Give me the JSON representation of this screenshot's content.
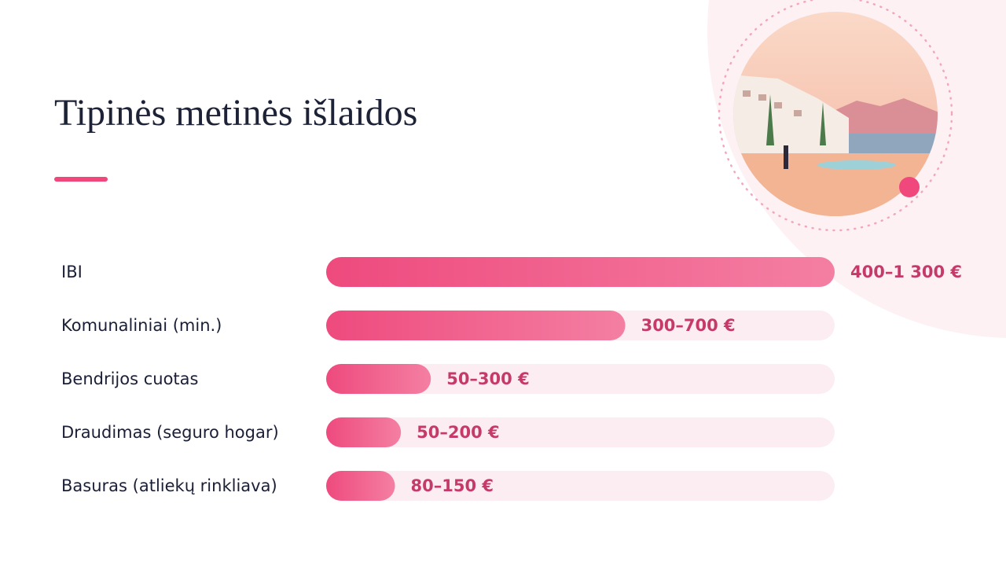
{
  "chart_data": {
    "type": "bar",
    "orientation": "horizontal",
    "title": "Tipinės metinės išlaidos",
    "categories": [
      "IBI",
      "Komunaliniai (min.)",
      "Bendrijos cuotas",
      "Draudimas (seguro hogar)",
      "Basuras (atliekų rinkliava)"
    ],
    "values": [
      [
        400,
        1300
      ],
      [
        300,
        700
      ],
      [
        50,
        300
      ],
      [
        50,
        200
      ],
      [
        80,
        150
      ]
    ],
    "value_labels": [
      "400–1 300 €",
      "300–700 €",
      "50–300 €",
      "50–200 €",
      "80–150 €"
    ],
    "xlim": [
      0,
      850
    ],
    "colors": [
      "#ee4a7e",
      "#f47fa3"
    ],
    "track_color": "#fcedf2"
  }
}
